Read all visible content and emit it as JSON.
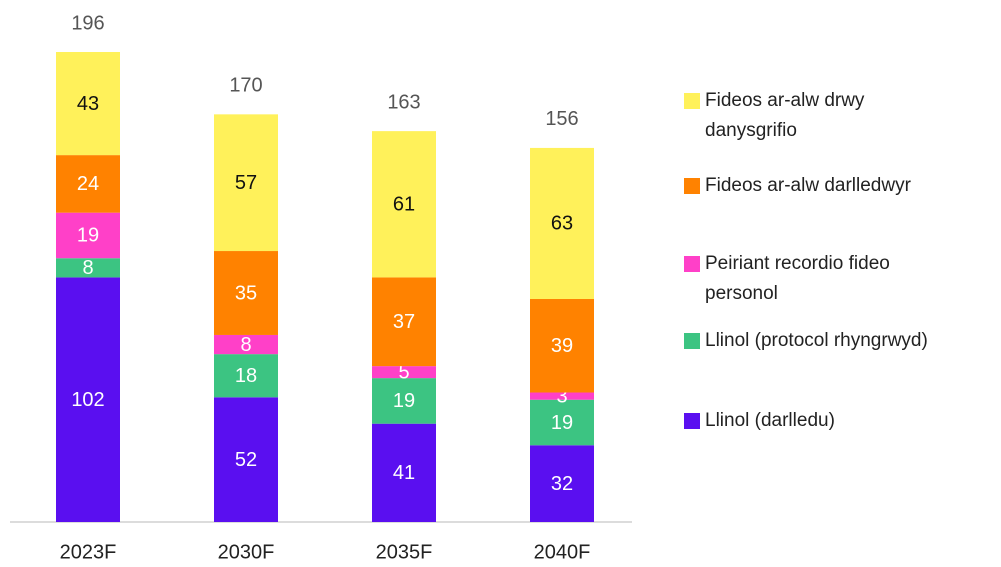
{
  "chart_data": {
    "type": "stacked-bar",
    "categories": [
      "2023F",
      "2030F",
      "2035F",
      "2040F"
    ],
    "series": [
      {
        "name": "Llinol (darlledu)",
        "color": "#5a0ff0",
        "values": [
          102,
          52,
          41,
          32
        ]
      },
      {
        "name": "Llinol (protocol rhyngrwyd)",
        "color": "#3cc482",
        "values": [
          8,
          18,
          19,
          19
        ]
      },
      {
        "name": "Peiriant recordio fideo personol",
        "color": "#ff40c8",
        "values": [
          19,
          8,
          5,
          3
        ]
      },
      {
        "name": "Fideos ar-alw darlledwyr",
        "color": "#ff8200",
        "values": [
          24,
          35,
          37,
          39
        ]
      },
      {
        "name": "Fideos ar-alw drwy danysgrifio",
        "color": "#fff15a",
        "values": [
          43,
          57,
          61,
          63
        ]
      }
    ],
    "totals": [
      196,
      170,
      163,
      156
    ],
    "legend": "right"
  }
}
